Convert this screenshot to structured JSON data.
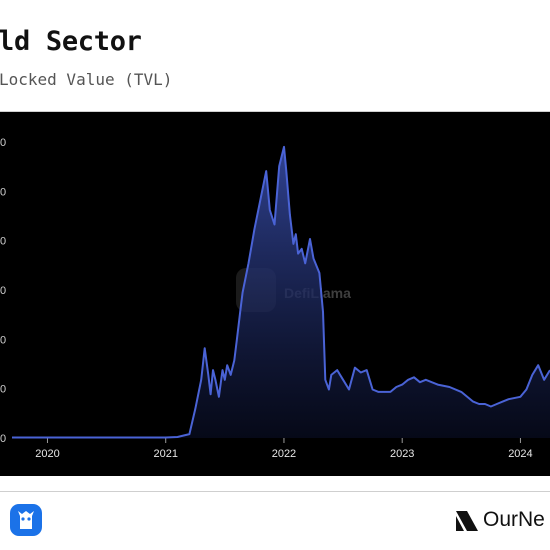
{
  "header": {
    "title": "ld Sector",
    "subtitle": "Locked Value (TVL)"
  },
  "watermark": {
    "text": "DefiLlama"
  },
  "footer": {
    "brand": "OurNe"
  },
  "colors": {
    "line": "#4a63d6",
    "panel": "#000000",
    "background": "#ffffff"
  },
  "chart_data": {
    "type": "area",
    "title": "",
    "xlabel": "",
    "ylabel": "",
    "x_ticks": [
      "2020",
      "2021",
      "2022",
      "2023",
      "2024"
    ],
    "y_ticks": [
      "0",
      "0",
      "0",
      "0",
      "0",
      "0",
      "0"
    ],
    "xlim": [
      2019.7,
      2024.25
    ],
    "ylim": [
      0,
      6.1
    ],
    "grid": false,
    "legend": "none",
    "series": [
      {
        "x": [
          2019.7,
          2020.0,
          2020.5,
          2021.0,
          2021.1,
          2021.2,
          2021.25,
          2021.3,
          2021.33,
          2021.36,
          2021.38,
          2021.4,
          2021.42,
          2021.45,
          2021.48,
          2021.5,
          2021.52,
          2021.55,
          2021.58,
          2021.6,
          2021.63,
          2021.65,
          2021.7,
          2021.75,
          2021.8,
          2021.85,
          2021.88,
          2021.92,
          2021.96,
          2022.0,
          2022.02,
          2022.05,
          2022.08,
          2022.1,
          2022.12,
          2022.15,
          2022.18,
          2022.22,
          2022.25,
          2022.3,
          2022.33,
          2022.35,
          2022.38,
          2022.4,
          2022.45,
          2022.5,
          2022.55,
          2022.6,
          2022.65,
          2022.7,
          2022.75,
          2022.8,
          2022.85,
          2022.9,
          2022.95,
          2023.0,
          2023.05,
          2023.1,
          2023.15,
          2023.2,
          2023.3,
          2023.4,
          2023.5,
          2023.6,
          2023.65,
          2023.7,
          2023.75,
          2023.8,
          2023.85,
          2023.9,
          2024.0,
          2024.05,
          2024.1,
          2024.15,
          2024.2,
          2024.25
        ],
        "y": [
          0.01,
          0.01,
          0.01,
          0.01,
          0.02,
          0.08,
          0.6,
          1.2,
          1.85,
          1.3,
          0.9,
          1.4,
          1.2,
          0.85,
          1.4,
          1.2,
          1.5,
          1.3,
          1.6,
          2.0,
          2.6,
          3.0,
          3.6,
          4.3,
          4.9,
          5.5,
          4.7,
          4.4,
          5.6,
          6.0,
          5.5,
          4.6,
          4.0,
          4.2,
          3.8,
          3.9,
          3.6,
          4.1,
          3.7,
          3.4,
          2.6,
          1.2,
          1.0,
          1.3,
          1.4,
          1.2,
          1.0,
          1.45,
          1.35,
          1.4,
          1.0,
          0.95,
          0.95,
          0.95,
          1.05,
          1.1,
          1.2,
          1.25,
          1.15,
          1.2,
          1.1,
          1.05,
          0.95,
          0.75,
          0.7,
          0.7,
          0.65,
          0.7,
          0.75,
          0.8,
          0.85,
          1.0,
          1.3,
          1.5,
          1.2,
          1.4
        ]
      }
    ]
  }
}
